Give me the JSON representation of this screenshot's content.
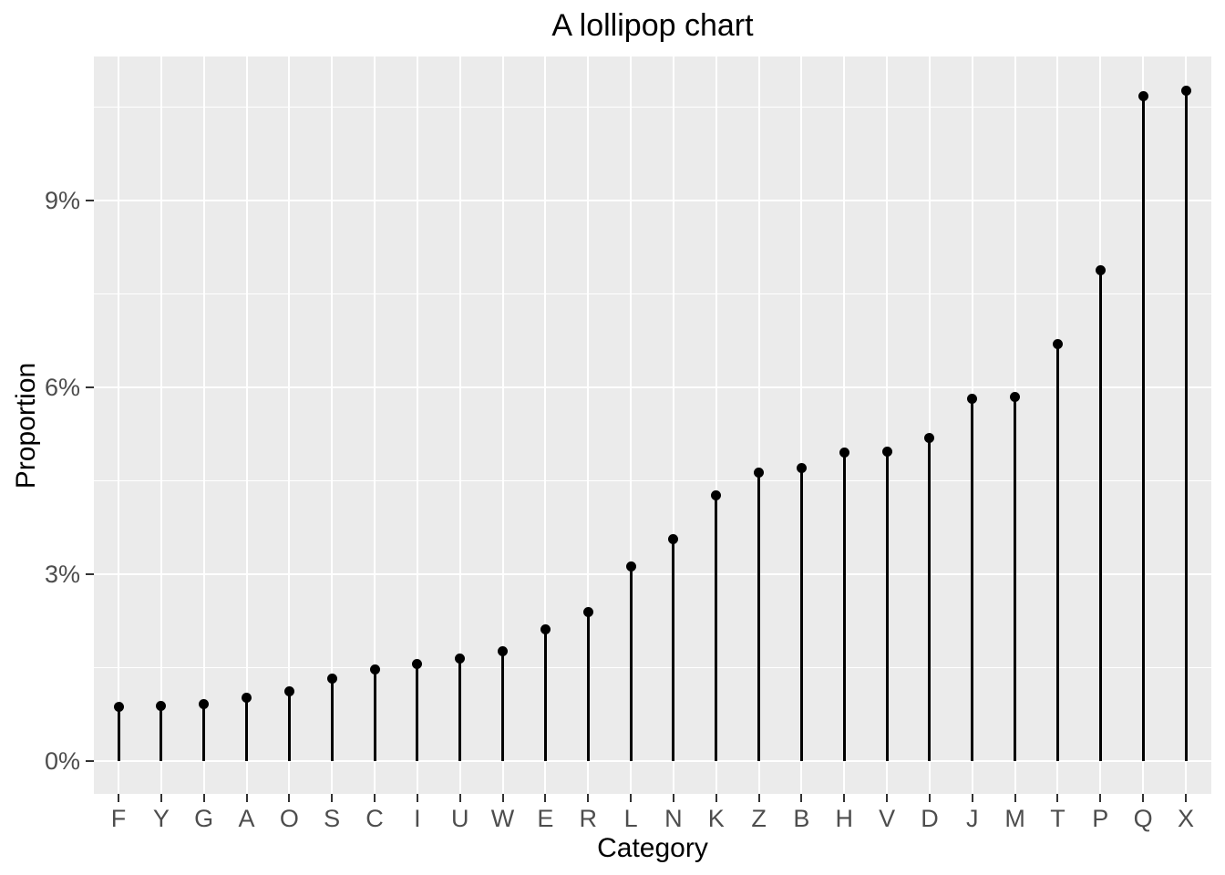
{
  "chart_data": {
    "type": "bar",
    "variant": "lollipop",
    "title": "A lollipop chart",
    "xlabel": "Category",
    "ylabel": "Proportion",
    "categories": [
      "F",
      "Y",
      "G",
      "A",
      "O",
      "S",
      "C",
      "I",
      "U",
      "W",
      "E",
      "R",
      "L",
      "N",
      "K",
      "Z",
      "B",
      "H",
      "V",
      "D",
      "J",
      "M",
      "T",
      "P",
      "Q",
      "X"
    ],
    "values_pct": [
      0.87,
      0.88,
      0.92,
      1.01,
      1.12,
      1.33,
      1.47,
      1.56,
      1.64,
      1.76,
      2.11,
      2.4,
      3.12,
      3.56,
      4.26,
      4.63,
      4.7,
      4.95,
      4.97,
      5.19,
      5.81,
      5.85,
      6.69,
      7.88,
      10.68,
      10.77
    ],
    "y_ticks": [
      {
        "value": 0,
        "label": "0%"
      },
      {
        "value": 3,
        "label": "3%"
      },
      {
        "value": 6,
        "label": "6%"
      },
      {
        "value": 9,
        "label": "9%"
      }
    ],
    "y_minor_gridlines_pct": [
      1.5,
      4.5,
      7.5,
      10.5
    ],
    "ylim_pct": [
      -0.54,
      11.31
    ],
    "legend_position": "none",
    "grid": "white major and minor gridlines on gray panel",
    "colors": {
      "page_background": "#FFFFFF",
      "panel_background": "#EBEBEB",
      "gridline": "#FFFFFF",
      "lollipop": "#000000",
      "axis_text": "#4D4D4D",
      "tick_mark": "#333333",
      "title_text": "#000000"
    }
  }
}
